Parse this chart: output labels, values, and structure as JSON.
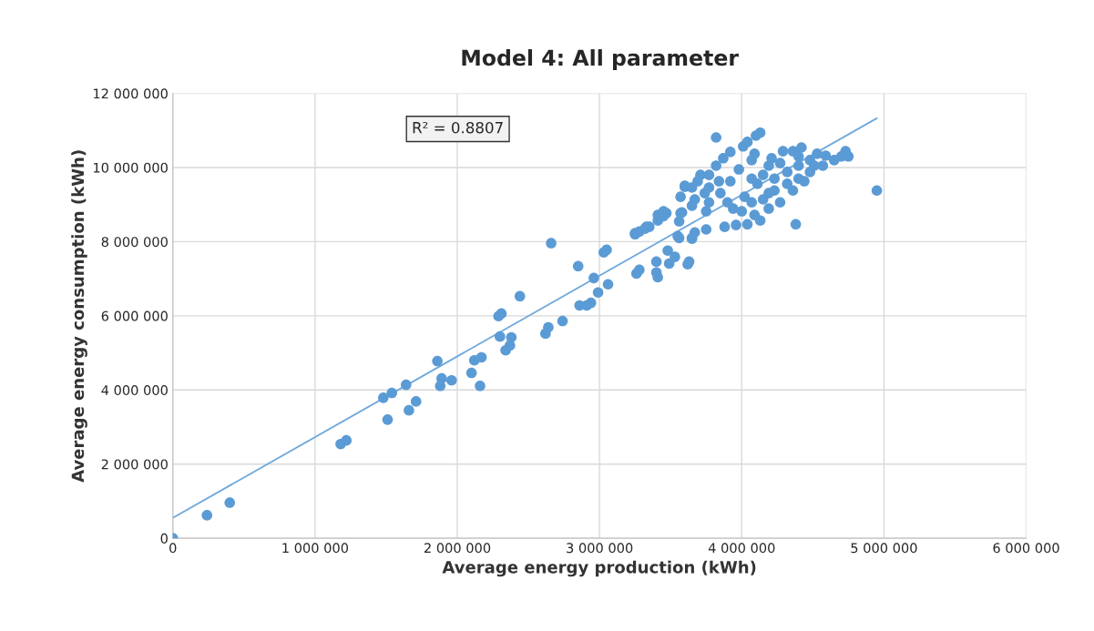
{
  "chart_data": {
    "type": "scatter",
    "title": "Model 4: All parameter",
    "xlabel": "Average energy production (kWh)",
    "ylabel": "Average energy consumption (kWh)",
    "xlim": [
      0,
      6000000
    ],
    "ylim": [
      0,
      12000000
    ],
    "xticks": [
      0,
      {
        "value": 1000000,
        "label": "1 000 000"
      },
      {
        "value": 2000000,
        "label": "2 000 000"
      },
      {
        "value": 3000000,
        "label": "3 000 000"
      },
      {
        "value": 4000000,
        "label": "4 000 000"
      },
      {
        "value": 5000000,
        "label": "5 000 000"
      },
      {
        "value": 6000000,
        "label": "6 000 000"
      }
    ],
    "yticks": [
      0,
      {
        "value": 2000000,
        "label": "2 000 000"
      },
      {
        "value": 4000000,
        "label": "4 000 000"
      },
      {
        "value": 6000000,
        "label": "6 000 000"
      },
      {
        "value": 8000000,
        "label": "8 000 000"
      },
      {
        "value": 10000000,
        "label": "10 000 000"
      },
      {
        "value": 12000000,
        "label": "12 000 000"
      }
    ],
    "grid": true,
    "annotations": [
      "R² = 0.8807"
    ],
    "series": [
      {
        "color": "#5b9bd5",
        "marker": "circle",
        "x": [
          0,
          240000,
          400000,
          1180000,
          1220000,
          1480000,
          1510000,
          1540000,
          1640000,
          1660000,
          1710000,
          1860000,
          1880000,
          1890000,
          1960000,
          2100000,
          2120000,
          2160000,
          2170000,
          2290000,
          2310000,
          2300000,
          2340000,
          2370000,
          2380000,
          2440000,
          2620000,
          2640000,
          2660000,
          2740000,
          2850000,
          2860000,
          2910000,
          2940000,
          2960000,
          2990000,
          3030000,
          3050000,
          3060000,
          3250000,
          3280000,
          3320000,
          3350000,
          3260000,
          3280000,
          3400000,
          3400000,
          3410000,
          3410000,
          3450000,
          3470000,
          3480000,
          3490000,
          3530000,
          3560000,
          3560000,
          3580000,
          3600000,
          3620000,
          3630000,
          3650000,
          3670000,
          3820000,
          4130000,
          4100000,
          4040000,
          4010000,
          3920000,
          3870000,
          3820000,
          3770000,
          3710000,
          3690000,
          3600000,
          3570000,
          3650000,
          3770000,
          3850000,
          3920000,
          3980000,
          4090000,
          4210000,
          4290000,
          4360000,
          4420000,
          4530000,
          4590000,
          4700000,
          4730000,
          4750000,
          4950000,
          4380000,
          3570000,
          3550000,
          3650000,
          3750000,
          3880000,
          3960000,
          4040000,
          4130000,
          3940000,
          3900000,
          4020000,
          4110000,
          4190000,
          4230000,
          4320000,
          4400000,
          4480000,
          4570000,
          4650000,
          4440000,
          4360000,
          4270000,
          4190000,
          4090000,
          4000000,
          4070000,
          4150000,
          4230000,
          4320000,
          4400000,
          4510000,
          4270000,
          4400000,
          4480000,
          4150000,
          4070000,
          4190000,
          4070000,
          3770000,
          3840000,
          3740000,
          3650000,
          3670000,
          3750000,
          3410000,
          3450000,
          3330000,
          3250000
        ],
        "values": [
          0,
          620000,
          960000,
          2540000,
          2640000,
          3790000,
          3200000,
          3920000,
          4140000,
          3450000,
          3690000,
          4780000,
          4110000,
          4310000,
          4260000,
          4460000,
          4800000,
          4110000,
          4880000,
          5990000,
          6060000,
          5440000,
          5070000,
          5200000,
          5420000,
          6530000,
          5520000,
          5690000,
          7960000,
          5860000,
          7340000,
          6280000,
          6280000,
          6350000,
          7020000,
          6630000,
          7710000,
          7780000,
          6850000,
          8200000,
          8270000,
          8350000,
          8400000,
          7140000,
          7240000,
          7460000,
          7170000,
          7040000,
          8570000,
          8690000,
          8770000,
          7760000,
          7410000,
          7590000,
          8550000,
          8100000,
          8790000,
          9480000,
          7390000,
          7460000,
          8100000,
          8250000,
          10810000,
          10940000,
          10860000,
          10690000,
          10570000,
          10420000,
          10250000,
          10050000,
          9800000,
          9800000,
          9630000,
          9510000,
          9210000,
          8970000,
          9060000,
          9310000,
          9630000,
          9950000,
          10370000,
          10250000,
          10440000,
          10440000,
          10540000,
          10370000,
          10320000,
          10300000,
          10440000,
          10300000,
          9380000,
          8470000,
          8770000,
          8150000,
          8080000,
          8330000,
          8400000,
          8450000,
          8470000,
          8570000,
          8890000,
          9060000,
          9210000,
          9560000,
          9310000,
          9700000,
          9880000,
          10050000,
          9880000,
          10050000,
          10200000,
          9630000,
          9380000,
          9060000,
          8890000,
          8720000,
          8820000,
          9060000,
          9140000,
          9380000,
          9560000,
          9700000,
          10050000,
          10120000,
          10300000,
          10200000,
          9800000,
          9700000,
          10050000,
          10200000,
          9460000,
          9630000,
          9310000,
          9460000,
          9140000,
          8820000,
          8720000,
          8820000,
          8400000,
          8230000
        ]
      },
      {
        "type": "line",
        "color": "#6fa8dc",
        "x": [
          0,
          4950000
        ],
        "values": [
          550000,
          11330000
        ]
      }
    ]
  }
}
